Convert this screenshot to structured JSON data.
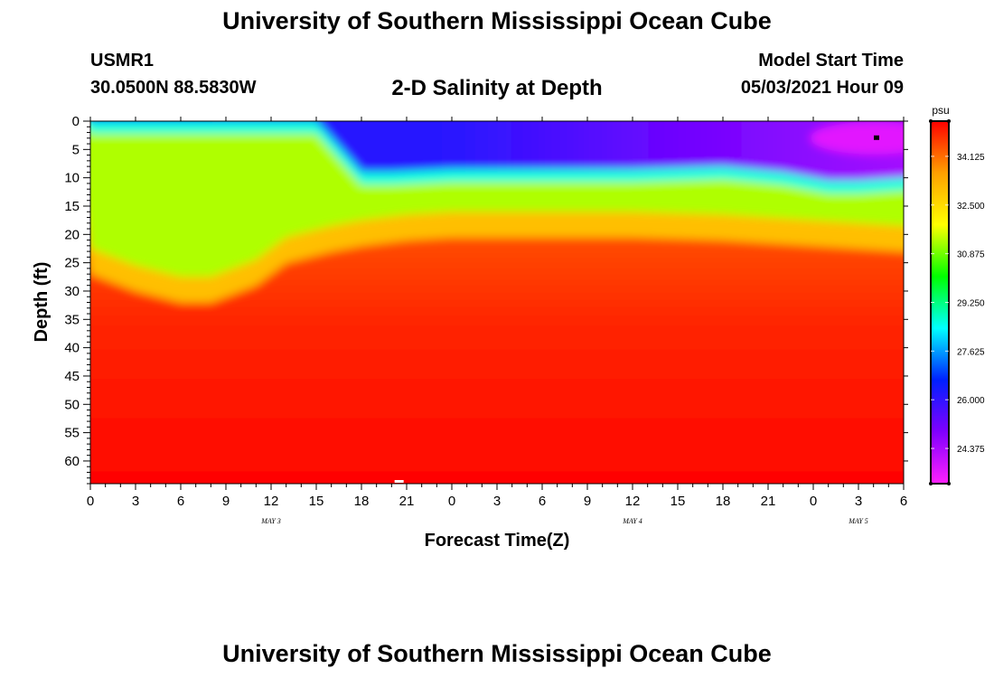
{
  "header": {
    "title_top": "University of Southern Mississippi Ocean Cube",
    "title_bottom": "University of Southern Mississippi Ocean Cube",
    "station_id": "USMR1",
    "station_coords": "30.0500N  88.5830W",
    "plot_title": "2-D Salinity at Depth",
    "model_label": "Model Start Time",
    "model_time": "05/03/2021 Hour 09"
  },
  "chart_data": {
    "type": "heatmap",
    "title": "2-D Salinity at Depth",
    "xlabel": "Forecast Time(Z)",
    "ylabel": "Depth (ft)",
    "x_ticks": [
      "0",
      "3",
      "6",
      "9",
      "12",
      "15",
      "18",
      "21",
      "0",
      "3",
      "6",
      "9",
      "12",
      "15",
      "18",
      "21",
      "0",
      "3",
      "6"
    ],
    "x_range_hours": [
      0,
      54
    ],
    "date_labels": [
      {
        "text": "MAY 3",
        "hour": 12
      },
      {
        "text": "MAY 4",
        "hour": 36
      },
      {
        "text": "MAY 5",
        "hour": 51
      }
    ],
    "y_ticks": [
      0,
      5,
      10,
      15,
      20,
      25,
      30,
      35,
      40,
      45,
      50,
      55,
      60
    ],
    "y_range_ft": [
      0,
      64
    ],
    "colorbar": {
      "unit": "psu",
      "min": 23.2,
      "max": 35.3,
      "tick_values": [
        34.125,
        32.5,
        30.875,
        29.25,
        27.625,
        26.0,
        24.375
      ],
      "tick_labels": [
        "34.125",
        "32.500",
        "30.875",
        "29.250",
        "27.625",
        "26.000",
        "24.375"
      ],
      "colors": [
        "#ff20ff",
        "#8000ff",
        "#0020ff",
        "#00ffff",
        "#00ff00",
        "#ffff00",
        "#ffa000",
        "#ff0000"
      ]
    },
    "fresh_layer_base_ft": [
      [
        0,
        0
      ],
      [
        6,
        0
      ],
      [
        12,
        0
      ],
      [
        15,
        0
      ],
      [
        17,
        6
      ],
      [
        18,
        9
      ],
      [
        20,
        9
      ],
      [
        24,
        8.5
      ],
      [
        30,
        8.5
      ],
      [
        36,
        8.5
      ],
      [
        42,
        8
      ],
      [
        46,
        9
      ],
      [
        49,
        10.5
      ],
      [
        51,
        10.5
      ],
      [
        54,
        10
      ]
    ],
    "halocline_base_ft": [
      [
        0,
        24
      ],
      [
        3,
        27
      ],
      [
        6,
        29
      ],
      [
        8,
        29
      ],
      [
        11,
        26
      ],
      [
        13,
        22
      ],
      [
        16,
        20
      ],
      [
        18,
        19
      ],
      [
        21,
        18
      ],
      [
        24,
        17.5
      ],
      [
        30,
        17.5
      ],
      [
        36,
        17.5
      ],
      [
        42,
        18
      ],
      [
        48,
        19
      ],
      [
        54,
        20
      ]
    ],
    "fresh_layer_values": {
      "start": 26.0,
      "end": 24.5
    },
    "annotations": [
      "MAY 3",
      "MAY 4",
      "MAY 5"
    ]
  }
}
